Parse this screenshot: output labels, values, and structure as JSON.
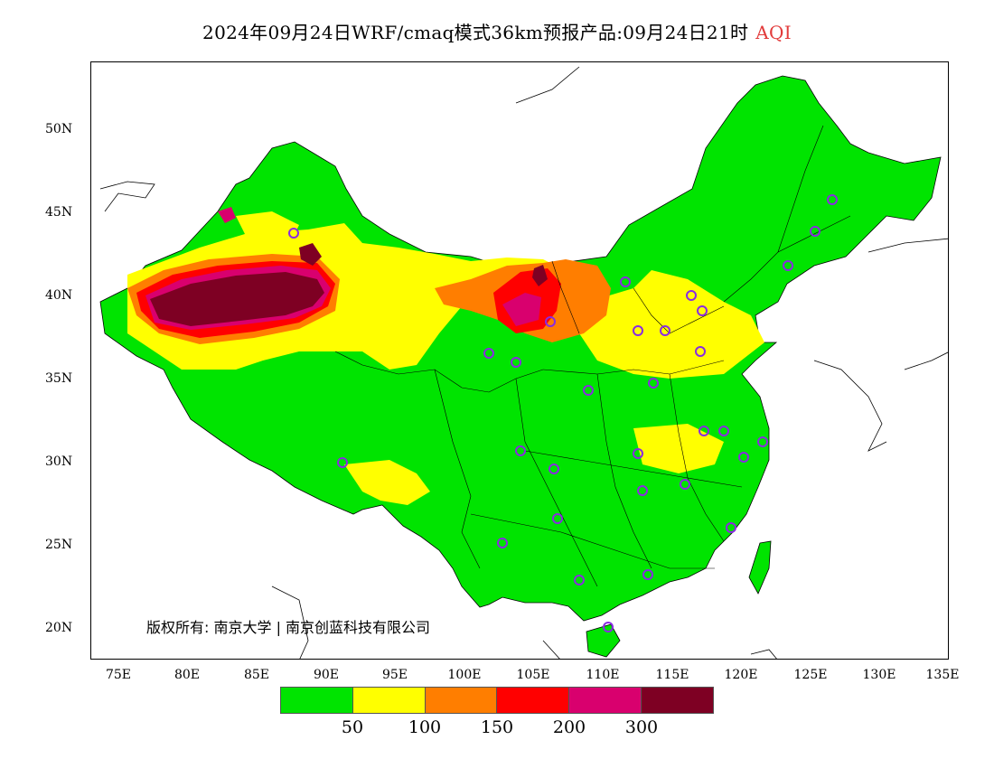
{
  "title": {
    "text": "2024年09月24日WRF/cmaq模式36km预报产品:09月24日21时",
    "product": "AQI"
  },
  "map": {
    "lat_ticks": [
      "50N",
      "45N",
      "40N",
      "35N",
      "30N",
      "25N",
      "20N"
    ],
    "lon_ticks": [
      "75E",
      "80E",
      "85E",
      "90E",
      "95E",
      "100E",
      "105E",
      "110E",
      "115E",
      "120E",
      "125E",
      "130E",
      "135E"
    ],
    "copyright": "版权所有: 南京大学 | 南京创蓝科技有限公司",
    "extent": {
      "lon": [
        73,
        135
      ],
      "lat": [
        18,
        54
      ]
    }
  },
  "legend": {
    "colors": [
      "#00e400",
      "#ffff00",
      "#ff7e00",
      "#ff0000",
      "#d9006e",
      "#7e0023"
    ],
    "labels": [
      "50",
      "100",
      "150",
      "200",
      "300"
    ]
  },
  "colors": {
    "good": "#00e400",
    "moderate": "#ffff00",
    "unhealthy_sensitive": "#ff7e00",
    "unhealthy": "#ff0000",
    "very_unhealthy": "#d9006e",
    "hazardous": "#7e0023",
    "station_marker": "#8a2be2"
  }
}
